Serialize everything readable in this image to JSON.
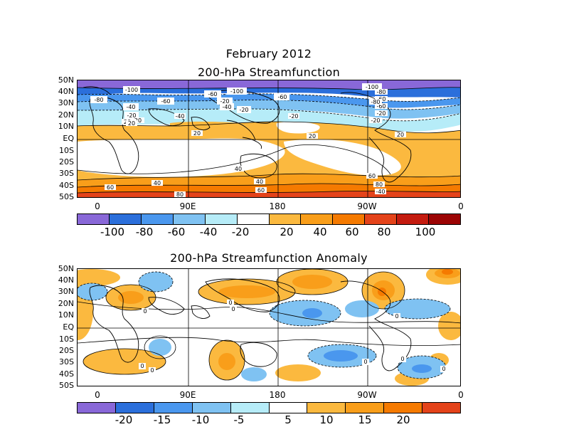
{
  "titles": {
    "line1": "February 2012",
    "line2": "200-hPa Streamfunction",
    "line3": "200-hPa Streamfunction Anomaly"
  },
  "lat_labels": [
    "50N",
    "40N",
    "30N",
    "20N",
    "10N",
    "EQ",
    "10S",
    "20S",
    "30S",
    "40S",
    "50S"
  ],
  "lon_labels": [
    "0",
    "90E",
    "180",
    "90W",
    "0"
  ],
  "top_map": {
    "contour_labels": [
      "-100",
      "-80",
      "-60",
      "-60",
      "-100",
      "-100",
      "-60",
      "-80",
      "-60",
      "-60",
      "-80",
      "-40",
      "-20",
      "-20",
      "-40",
      "-20",
      "-20",
      "-20",
      "20",
      "20",
      "20",
      "20",
      "20",
      "20",
      "40",
      "40",
      "40",
      "60",
      "60",
      "60",
      "80",
      "80",
      "-40",
      "-40",
      "-20"
    ],
    "colorbar": {
      "labels": [
        "-100",
        "-80",
        "-60",
        "-40",
        "-20",
        "20",
        "40",
        "60",
        "80",
        "100"
      ],
      "colors": [
        "#8968d8",
        "#2b6fdb",
        "#4a97ee",
        "#7fc2f2",
        "#b6ecf8",
        "#ffffff",
        "#fbb93f",
        "#f99e1a",
        "#f57a00",
        "#e4431a",
        "#c41b0f",
        "#9c0404"
      ]
    }
  },
  "bottom_map": {
    "contour_labels": [
      "0",
      "0",
      "0",
      "0",
      "0",
      "0",
      "0",
      "0",
      "0"
    ],
    "colorbar": {
      "labels": [
        "-20",
        "-15",
        "-10",
        "-5",
        "5",
        "10",
        "15",
        "20"
      ],
      "colors": [
        "#8968d8",
        "#2b6fdb",
        "#4a97ee",
        "#7fc2f2",
        "#b6ecf8",
        "#ffffff",
        "#fbb93f",
        "#f99e1a",
        "#f57a00",
        "#e4431a"
      ]
    }
  }
}
